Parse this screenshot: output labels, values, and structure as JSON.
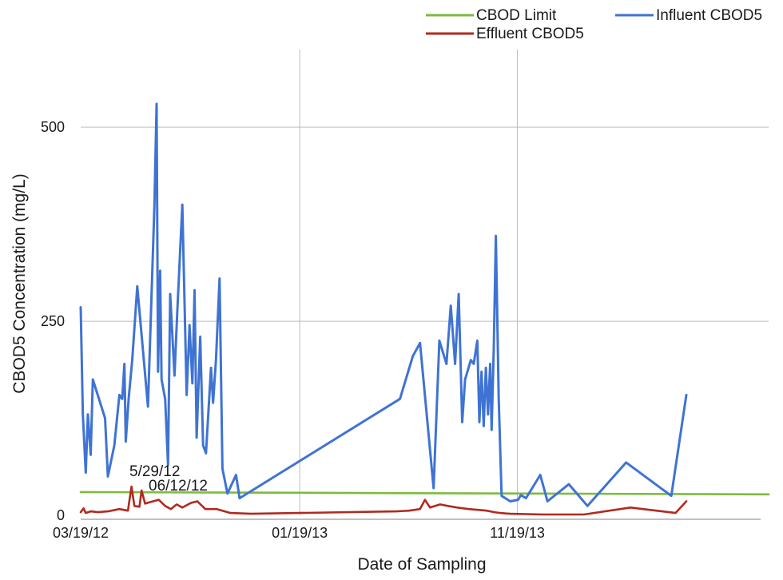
{
  "chart_data": {
    "type": "line",
    "xlabel": "Date of  Sampling",
    "ylabel": "CBOD5 Concentration (mg/L)",
    "xlim": [
      "2012-03-19",
      "2014-11-05"
    ],
    "ylim": [
      0,
      600
    ],
    "x_ticks": [
      {
        "date": "2012-03-19",
        "label": "03/19/12"
      },
      {
        "date": "2013-01-19",
        "label": "01/19/13"
      },
      {
        "date": "2013-11-19",
        "label": "11/19/13"
      }
    ],
    "y_ticks": [
      0,
      250,
      500
    ],
    "grid": true,
    "legend": {
      "position": "top-right",
      "entries": [
        {
          "name": "CBOD Limit",
          "color": "#7dbb3c"
        },
        {
          "name": "Influent CBOD5",
          "color": "#3f73d3"
        },
        {
          "name": "Effluent CBOD5",
          "color": "#b02a1e"
        }
      ]
    },
    "series": [
      {
        "name": "CBOD Limit",
        "color": "#7dbb3c",
        "points": [
          [
            "2012-03-19",
            30
          ],
          [
            "2014-11-05",
            27
          ]
        ]
      },
      {
        "name": "Influent CBOD5",
        "color": "#3f73d3",
        "points": [
          [
            "2012-03-19",
            268
          ],
          [
            "2012-03-22",
            130
          ],
          [
            "2012-03-26",
            55
          ],
          [
            "2012-03-29",
            130
          ],
          [
            "2012-04-02",
            78
          ],
          [
            "2012-04-05",
            175
          ],
          [
            "2012-04-22",
            125
          ],
          [
            "2012-04-26",
            50
          ],
          [
            "2012-05-05",
            90
          ],
          [
            "2012-05-12",
            155
          ],
          [
            "2012-05-16",
            150
          ],
          [
            "2012-05-19",
            195
          ],
          [
            "2012-05-21",
            95
          ],
          [
            "2012-05-25",
            150
          ],
          [
            "2012-05-30",
            200
          ],
          [
            "2012-06-06",
            295
          ],
          [
            "2012-06-21",
            140
          ],
          [
            "2012-06-30",
            400
          ],
          [
            "2012-07-03",
            530
          ],
          [
            "2012-07-05",
            185
          ],
          [
            "2012-07-08",
            315
          ],
          [
            "2012-07-10",
            175
          ],
          [
            "2012-07-15",
            150
          ],
          [
            "2012-07-19",
            65
          ],
          [
            "2012-07-22",
            285
          ],
          [
            "2012-07-28",
            180
          ],
          [
            "2012-08-01",
            265
          ],
          [
            "2012-08-08",
            400
          ],
          [
            "2012-08-14",
            155
          ],
          [
            "2012-08-18",
            245
          ],
          [
            "2012-08-22",
            170
          ],
          [
            "2012-08-25",
            290
          ],
          [
            "2012-08-28",
            100
          ],
          [
            "2012-09-02",
            230
          ],
          [
            "2012-09-06",
            90
          ],
          [
            "2012-09-10",
            80
          ],
          [
            "2012-09-17",
            190
          ],
          [
            "2012-09-20",
            145
          ],
          [
            "2012-09-24",
            200
          ],
          [
            "2012-09-29",
            305
          ],
          [
            "2012-10-03",
            60
          ],
          [
            "2012-10-10",
            28
          ],
          [
            "2012-10-22",
            52
          ],
          [
            "2012-10-27",
            22
          ],
          [
            "2013-06-08",
            150
          ],
          [
            "2013-06-26",
            205
          ],
          [
            "2013-07-06",
            222
          ],
          [
            "2013-07-25",
            35
          ],
          [
            "2013-08-02",
            225
          ],
          [
            "2013-08-12",
            195
          ],
          [
            "2013-08-18",
            270
          ],
          [
            "2013-08-24",
            195
          ],
          [
            "2013-08-29",
            285
          ],
          [
            "2013-09-03",
            120
          ],
          [
            "2013-09-07",
            175
          ],
          [
            "2013-09-15",
            200
          ],
          [
            "2013-09-19",
            195
          ],
          [
            "2013-09-24",
            225
          ],
          [
            "2013-09-27",
            120
          ],
          [
            "2013-09-30",
            185
          ],
          [
            "2013-10-03",
            115
          ],
          [
            "2013-10-06",
            190
          ],
          [
            "2013-10-09",
            130
          ],
          [
            "2013-10-12",
            195
          ],
          [
            "2013-10-14",
            110
          ],
          [
            "2013-10-17",
            215
          ],
          [
            "2013-10-20",
            360
          ],
          [
            "2013-10-24",
            150
          ],
          [
            "2013-10-28",
            25
          ],
          [
            "2013-11-09",
            18
          ],
          [
            "2013-11-20",
            20
          ],
          [
            "2013-11-24",
            26
          ],
          [
            "2013-12-01",
            22
          ],
          [
            "2013-12-21",
            52
          ],
          [
            "2013-12-31",
            18
          ],
          [
            "2014-01-30",
            40
          ],
          [
            "2014-02-25",
            12
          ],
          [
            "2014-04-20",
            68
          ],
          [
            "2014-06-22",
            25
          ],
          [
            "2014-07-13",
            155
          ]
        ]
      },
      {
        "name": "Effluent CBOD5",
        "color": "#b02a1e",
        "points": [
          [
            "2012-03-19",
            4
          ],
          [
            "2012-03-23",
            9
          ],
          [
            "2012-03-26",
            3
          ],
          [
            "2012-04-02",
            5
          ],
          [
            "2012-04-12",
            4
          ],
          [
            "2012-04-26",
            5
          ],
          [
            "2012-05-12",
            8
          ],
          [
            "2012-05-24",
            6
          ],
          [
            "2012-05-29",
            37
          ],
          [
            "2012-06-02",
            12
          ],
          [
            "2012-06-09",
            11
          ],
          [
            "2012-06-12",
            32
          ],
          [
            "2012-06-17",
            15
          ],
          [
            "2012-06-24",
            17
          ],
          [
            "2012-07-06",
            20
          ],
          [
            "2012-07-15",
            12
          ],
          [
            "2012-07-23",
            8
          ],
          [
            "2012-07-31",
            14
          ],
          [
            "2012-08-08",
            10
          ],
          [
            "2012-08-20",
            16
          ],
          [
            "2012-08-29",
            18
          ],
          [
            "2012-09-09",
            8
          ],
          [
            "2012-09-25",
            8
          ],
          [
            "2012-10-03",
            6
          ],
          [
            "2012-10-14",
            3
          ],
          [
            "2012-11-12",
            2
          ],
          [
            "2013-06-03",
            5
          ],
          [
            "2013-06-21",
            6
          ],
          [
            "2013-07-06",
            8
          ],
          [
            "2013-07-13",
            20
          ],
          [
            "2013-07-20",
            10
          ],
          [
            "2013-08-03",
            14
          ],
          [
            "2013-08-14",
            12
          ],
          [
            "2013-08-27",
            10
          ],
          [
            "2013-09-12",
            8
          ],
          [
            "2013-09-25",
            7
          ],
          [
            "2013-10-07",
            6
          ],
          [
            "2013-10-18",
            4
          ],
          [
            "2013-10-26",
            3
          ],
          [
            "2013-11-09",
            2
          ],
          [
            "2013-12-26",
            1
          ],
          [
            "2014-02-20",
            1
          ],
          [
            "2014-04-26",
            10
          ],
          [
            "2014-06-28",
            3
          ],
          [
            "2014-07-13",
            18
          ]
        ]
      }
    ],
    "annotations": [
      {
        "text": "5/29/12",
        "date": "2012-05-29",
        "value": 37
      },
      {
        "text": "06/12/12",
        "date": "2012-06-12",
        "value": 32
      }
    ]
  }
}
